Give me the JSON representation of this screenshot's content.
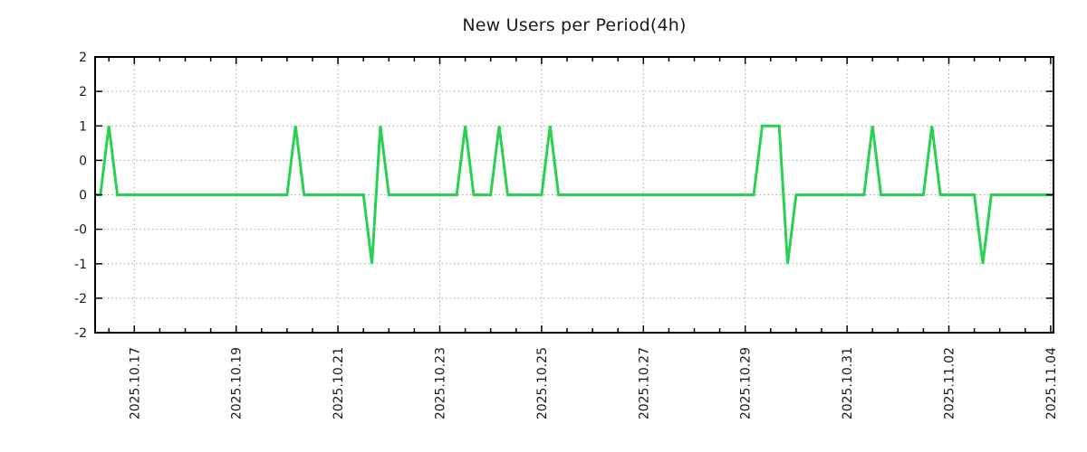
{
  "title": "New Users per Period(4h)",
  "chart_data": {
    "type": "line",
    "title": "New Users per Period(4h)",
    "series_name": "new-users-per-4h-period",
    "period_hours": 4,
    "x_start": "2025-10-16 04:00",
    "x_end": "2025-11-04 04:00",
    "default_value": 0,
    "nonzero_points": [
      {
        "time": "2025-10-16 12:00",
        "value": 1
      },
      {
        "time": "2025-10-20 04:00",
        "value": 1
      },
      {
        "time": "2025-10-21 16:00",
        "value": -1
      },
      {
        "time": "2025-10-21 20:00",
        "value": 1
      },
      {
        "time": "2025-10-23 12:00",
        "value": 1
      },
      {
        "time": "2025-10-24 04:00",
        "value": 1
      },
      {
        "time": "2025-10-25 04:00",
        "value": 1
      },
      {
        "time": "2025-10-29 08:00",
        "value": 1
      },
      {
        "time": "2025-10-29 12:00",
        "value": 1
      },
      {
        "time": "2025-10-29 16:00",
        "value": 1
      },
      {
        "time": "2025-10-29 20:00",
        "value": -1
      },
      {
        "time": "2025-10-31 12:00",
        "value": 1
      },
      {
        "time": "2025-11-01 16:00",
        "value": 1
      },
      {
        "time": "2025-11-02 16:00",
        "value": -1
      }
    ],
    "x_major_ticks": [
      {
        "time": "2025-10-17 00:00",
        "label": "2025.10.17"
      },
      {
        "time": "2025-10-19 00:00",
        "label": "2025.10.19"
      },
      {
        "time": "2025-10-21 00:00",
        "label": "2025.10.21"
      },
      {
        "time": "2025-10-23 00:00",
        "label": "2025.10.23"
      },
      {
        "time": "2025-10-25 00:00",
        "label": "2025.10.25"
      },
      {
        "time": "2025-10-27 00:00",
        "label": "2025.10.27"
      },
      {
        "time": "2025-10-29 00:00",
        "label": "2025.10.29"
      },
      {
        "time": "2025-10-31 00:00",
        "label": "2025.10.31"
      },
      {
        "time": "2025-11-02 00:00",
        "label": "2025.11.02"
      },
      {
        "time": "2025-11-04 00:00",
        "label": "2025.11.04"
      }
    ],
    "x_minor_tick_hours": 12,
    "y_ticks": [
      {
        "value": 2.0,
        "label": "2"
      },
      {
        "value": 1.5,
        "label": "2"
      },
      {
        "value": 1.0,
        "label": "1"
      },
      {
        "value": 0.5,
        "label": "0"
      },
      {
        "value": 0.0,
        "label": "0"
      },
      {
        "value": -0.5,
        "label": "-0"
      },
      {
        "value": -1.0,
        "label": "-1"
      },
      {
        "value": -1.5,
        "label": "-2"
      },
      {
        "value": -2.0,
        "label": "-2"
      }
    ],
    "ylim": [
      -2,
      2
    ],
    "grid": true,
    "legend": "none",
    "colors": {
      "line": "#28d250",
      "grid": "#a8a8a8",
      "axis": "#000000",
      "tick_label": "#1a1a1a",
      "title": "#1a1a1a",
      "background": "#ffffff"
    }
  }
}
